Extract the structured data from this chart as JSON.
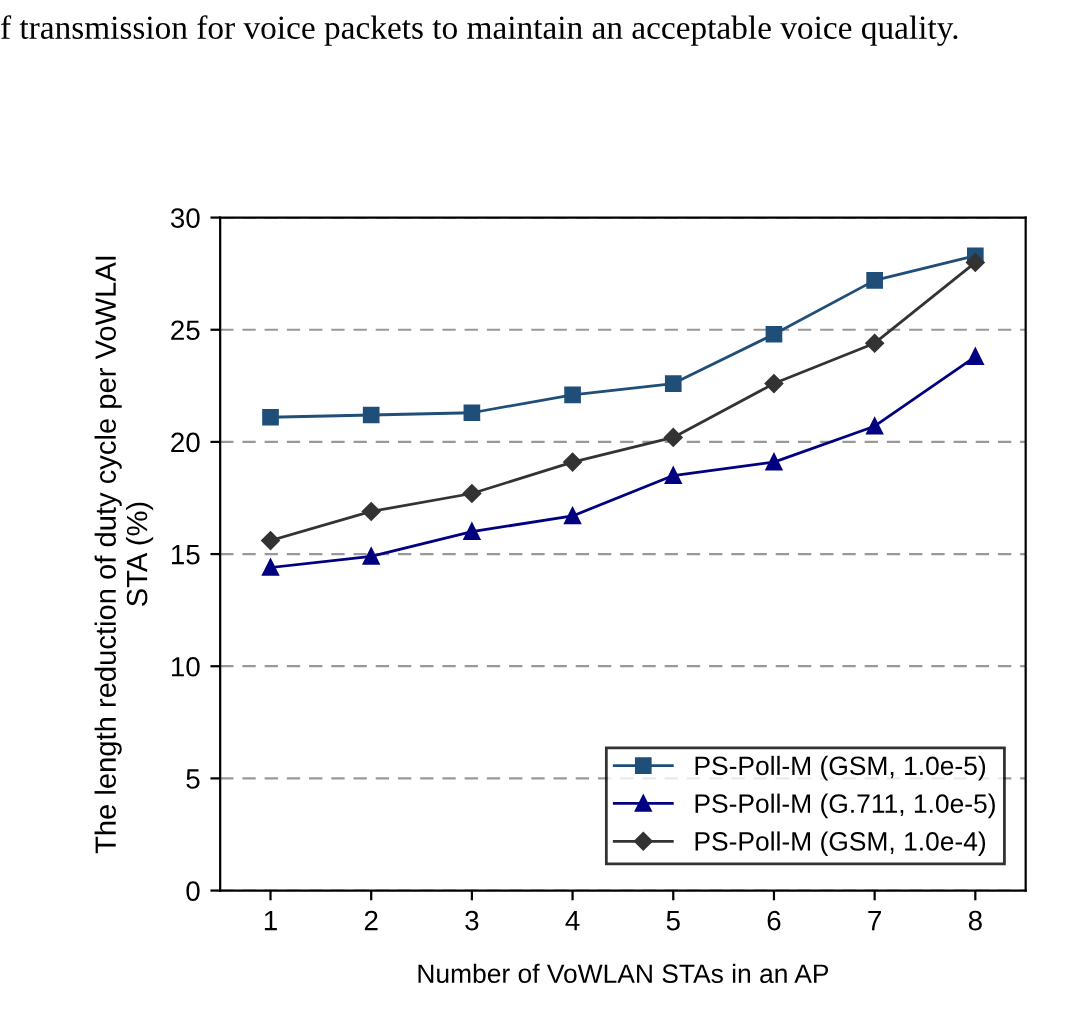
{
  "chart_data": {
    "type": "line",
    "xlabel": "Number of VoWLAN STAs in an AP",
    "ylabel": "The length reduction of duty cycle per VoWLAI\nSTA (%)",
    "annotations": [
      "f transmission for voice packets to maintain an acceptable voice quality."
    ],
    "categories": [
      "1",
      "2",
      "3",
      "4",
      "5",
      "6",
      "7",
      "8"
    ],
    "series": [
      {
        "name": "PS-Poll-M (GSM, 1.0e-5)",
        "color": "#1f4e79",
        "marker": "square",
        "values": [
          21.1,
          21.2,
          21.3,
          22.1,
          22.6,
          24.8,
          27.2,
          28.3
        ]
      },
      {
        "name": "PS-Poll-M (G.711, 1.0e-5)",
        "color": "#000080",
        "marker": "triangle",
        "values": [
          14.4,
          14.9,
          16.0,
          16.7,
          18.5,
          19.1,
          20.7,
          23.8
        ]
      },
      {
        "name": "PS-Poll-M (GSM, 1.0e-4)",
        "color": "#333333",
        "marker": "diamond",
        "values": [
          15.6,
          16.9,
          17.7,
          19.1,
          20.2,
          22.6,
          24.4,
          28.0
        ]
      }
    ],
    "ylim": [
      0,
      30
    ],
    "yticks": [
      0,
      5,
      10,
      15,
      20,
      25,
      30
    ],
    "grid": "y",
    "legend": "bottom right",
    "line_style": "solid"
  }
}
